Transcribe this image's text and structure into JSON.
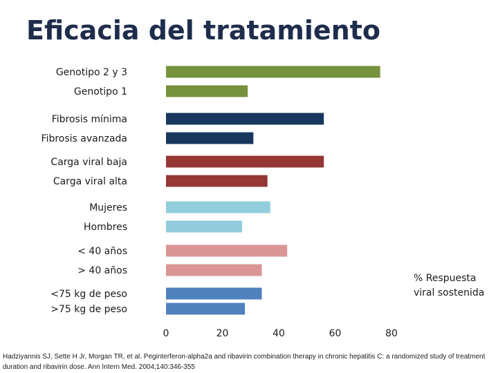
{
  "slide": {
    "title": "Eficacia del tratamiento",
    "citation": "Hadziyannis SJ, Sette H Jr, Morgan TR, et al. Peginterferon-alpha2a and ribavirin combination therapy in chronic hepatitis C: a randomized study of treatment duration and ribavirin dose. Ann Intern Med. 2004;140:346-355"
  },
  "chart_data": {
    "type": "bar",
    "orientation": "horizontal",
    "title": "Eficacia del tratamiento",
    "xlabel": "% Respuesta viral sostenida",
    "xlim": [
      0,
      80
    ],
    "xticks": [
      0,
      20,
      40,
      60,
      80
    ],
    "grid": false,
    "categories": [
      "Genotipo 2 y 3",
      "Genotipo 1",
      "Fibrosis mínima",
      "Fibrosis avanzada",
      "Carga viral baja",
      "Carga viral alta",
      "Mujeres",
      "Hombres",
      "< 40 años",
      "> 40 años",
      "<75 kg de peso",
      ">75 kg de peso"
    ],
    "values": [
      76,
      29,
      56,
      31,
      56,
      36,
      37,
      27,
      43,
      34,
      34,
      28
    ],
    "colors": [
      "#76923c",
      "#76923c",
      "#17375e",
      "#17375e",
      "#953735",
      "#953735",
      "#93cddd",
      "#93cddd",
      "#d99694",
      "#d99694",
      "#4f81bd",
      "#4f81bd"
    ],
    "legend_note": "% Respuesta viral sostenida"
  }
}
